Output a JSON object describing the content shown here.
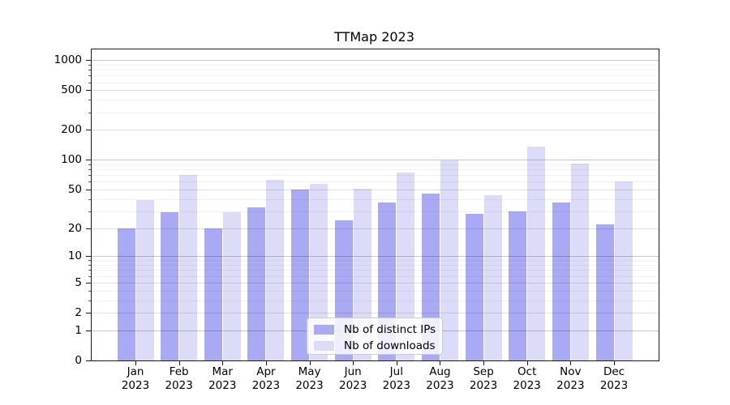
{
  "title": "TTMap 2023",
  "chart_data": {
    "type": "bar",
    "title": "TTMap 2023",
    "categories": [
      "Jan 2023",
      "Feb 2023",
      "Mar 2023",
      "Apr 2023",
      "May 2023",
      "Jun 2023",
      "Jul 2023",
      "Aug 2023",
      "Sep 2023",
      "Oct 2023",
      "Nov 2023",
      "Dec 2023"
    ],
    "series": [
      {
        "name": "Nb of distinct IPs",
        "color": "#a9a9f4",
        "values": [
          20,
          29,
          20,
          33,
          50,
          24,
          37,
          45,
          28,
          30,
          37,
          22
        ]
      },
      {
        "name": "Nb of downloads",
        "color": "#dcdcf8",
        "values": [
          39,
          70,
          29,
          63,
          57,
          51,
          75,
          98,
          44,
          137,
          92,
          60
        ]
      }
    ],
    "y_axis": {
      "scale": "log10(value+1)",
      "ticks": [
        0,
        1,
        2,
        5,
        10,
        20,
        50,
        100,
        200,
        500,
        1000
      ],
      "minor_ticks": [
        3,
        4,
        6,
        7,
        8,
        9,
        30,
        40,
        60,
        70,
        80,
        90,
        300,
        400,
        600,
        700,
        800,
        900
      ],
      "range": [
        0,
        1270
      ]
    },
    "xlabel": "",
    "ylabel": "",
    "grid": true,
    "legend_position": "lower center"
  }
}
